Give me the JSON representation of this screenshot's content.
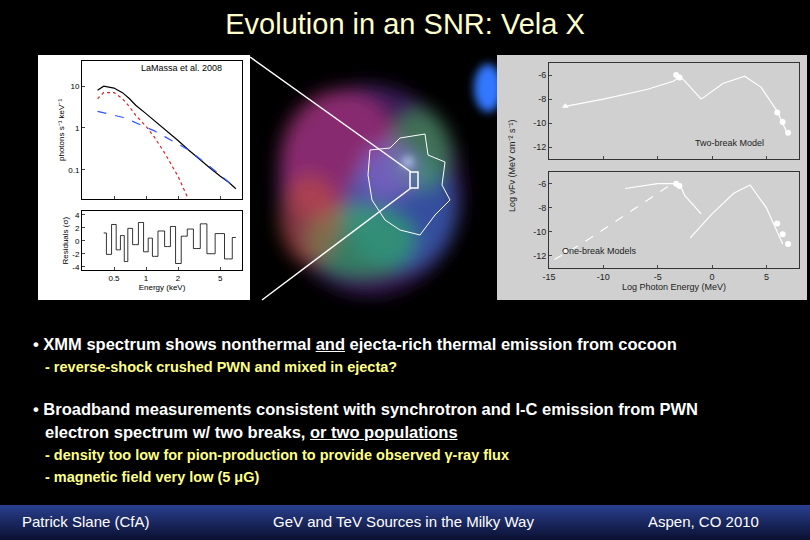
{
  "title": "Evolution in an SNR: Vela X",
  "chart_data": [
    {
      "type": "line",
      "citation": "LaMassa et al. 2008",
      "xlabel": "Energy (keV)",
      "ylabel": "photons s⁻¹ keV⁻¹",
      "log": true,
      "xlim": [
        0.25,
        8
      ],
      "ylim": [
        0.02,
        40
      ],
      "xticks": [
        0.5,
        1,
        2,
        5
      ],
      "yticks": [
        0.1,
        1,
        10
      ],
      "x": [
        0.35,
        0.4,
        0.5,
        0.6,
        0.7,
        0.8,
        1,
        1.2,
        1.5,
        2,
        2.5,
        3,
        4,
        5,
        6,
        7
      ],
      "series": [
        {
          "color": "#000000",
          "line_style": "solid",
          "values": [
            8,
            10,
            9,
            7,
            5,
            3.5,
            2.2,
            1.5,
            0.9,
            0.5,
            0.3,
            0.2,
            0.11,
            0.07,
            0.05,
            0.035
          ]
        },
        {
          "color": "#3355ff",
          "line_style": "dash",
          "values": [
            2.5,
            2.3,
            2.0,
            1.8,
            1.55,
            1.35,
            1.05,
            0.85,
            0.62,
            0.42,
            0.3,
            0.21,
            0.12,
            0.075,
            0.05,
            0.035
          ]
        },
        {
          "color": "#dd2222",
          "line_style": "dot",
          "values": [
            5,
            7,
            7,
            5,
            3.2,
            2,
            1.1,
            0.6,
            0.25,
            0.07,
            0.02,
            null,
            null,
            null,
            null,
            null
          ]
        }
      ],
      "residuals": {
        "ylabel": "Residuals (σ)",
        "color": "#000000",
        "ylim": [
          -4.5,
          4.5
        ],
        "yticks": [
          -4,
          -2,
          0,
          2,
          4
        ],
        "x": [
          0.4,
          0.45,
          0.5,
          0.55,
          0.6,
          0.65,
          0.7,
          0.8,
          0.9,
          1,
          1.1,
          1.2,
          1.4,
          1.6,
          1.8,
          2,
          2.3,
          2.6,
          3,
          3.5,
          4,
          5,
          6,
          7
        ],
        "values": [
          1.2,
          -2.1,
          2.5,
          -1.4,
          0.8,
          -3.2,
          1.9,
          -0.6,
          2.8,
          -1.7,
          0.4,
          -2.4,
          1.5,
          -0.9,
          2.2,
          -3.5,
          0.7,
          1.8,
          -1.2,
          2.6,
          -2.0,
          1.1,
          -2.8,
          0.5
        ]
      }
    },
    {
      "type": "line",
      "xlabel": "Log Photon Energy (MeV)",
      "ylabel": "Log νFν (MeV cm⁻² s⁻¹)",
      "xlim": [
        -15,
        8
      ],
      "xticks": [
        -15,
        -10,
        -5,
        0,
        5
      ],
      "panels": [
        {
          "label": "Two-break Model",
          "ylim": [
            -13,
            -5
          ],
          "yticks": [
            -12,
            -10,
            -8,
            -6
          ],
          "series": [
            {
              "color": "#ffffff",
              "line_style": "solid",
              "x": [
                -13.5,
                -10,
                -6,
                -3.5,
                -3,
                -2.5,
                -1
              ],
              "values": [
                -8.6,
                -8.0,
                -7.2,
                -6.5,
                -6.1,
                -6.5,
                -8.0
              ]
            },
            {
              "color": "#ffffff",
              "line_style": "solid",
              "x": [
                -1,
                1,
                3,
                4.5,
                6,
                7
              ],
              "values": [
                -8.0,
                -6.7,
                -6.1,
                -7.0,
                -9.0,
                -11.0
              ]
            },
            {
              "color": "#ffffff",
              "marker": "triangle",
              "x": [
                -13.5
              ],
              "values": [
                -8.6
              ]
            },
            {
              "color": "#ffffff",
              "marker": "circle",
              "x": [
                -3.3,
                -3.0,
                6,
                6.5,
                7
              ],
              "values": [
                -6.0,
                -6.2,
                -9.1,
                -9.9,
                -10.8
              ]
            }
          ]
        },
        {
          "label": "One-break Models",
          "ylim": [
            -13,
            -5
          ],
          "yticks": [
            -12,
            -10,
            -8,
            -6
          ],
          "series": [
            {
              "color": "#ffffff",
              "line_style": "solid",
              "x": [
                -8,
                -5,
                -3,
                -2.5,
                -1
              ],
              "values": [
                -6.4,
                -6.0,
                -6.0,
                -7.0,
                -8.5
              ]
            },
            {
              "color": "#ffffff",
              "line_style": "dash",
              "x": [
                -14.5,
                -12,
                -8,
                -4
              ],
              "values": [
                -12.3,
                -11.0,
                -8.6,
                -6.2
              ]
            },
            {
              "color": "#ffffff",
              "line_style": "solid",
              "x": [
                -2,
                0,
                2,
                3.5,
                5,
                6.5
              ],
              "values": [
                -10.5,
                -8.5,
                -6.8,
                -6.1,
                -8.0,
                -11.0
              ]
            },
            {
              "color": "#ffffff",
              "marker": "triangle",
              "x": [
                -13.5
              ],
              "values": [
                -11.6
              ]
            },
            {
              "color": "#ffffff",
              "marker": "circle",
              "x": [
                -3.3,
                -3.0,
                6,
                6.5,
                7
              ],
              "values": [
                -6.0,
                -6.2,
                -9.3,
                -10.2,
                -11.0
              ]
            }
          ]
        }
      ]
    }
  ],
  "bullets": [
    {
      "lines": [
        [
          {
            "text": "• XMM spectrum shows nonthermal "
          },
          {
            "text": "and",
            "underline": true
          },
          {
            "text": " ejecta-rich thermal emission from cocoon"
          }
        ]
      ],
      "sub": [
        "- reverse-shock crushed PWN and mixed in ejecta?"
      ]
    },
    {
      "lines": [
        [
          {
            "text": "• Broadband measurements consistent with synchrotron and I-C emission from PWN"
          }
        ],
        [
          {
            "text": "electron spectrum w/ two breaks, "
          },
          {
            "text": "or two populations",
            "underline": true
          }
        ]
      ],
      "sub": [
        "- density too low for pion-production to provide observed γ-ray flux",
        "- magnetic field very low (5 μG)"
      ]
    }
  ],
  "footer": [
    "Patrick Slane (CfA)",
    "GeV and TeV Sources in the Milky Way",
    "Aspen, CO 2010"
  ]
}
